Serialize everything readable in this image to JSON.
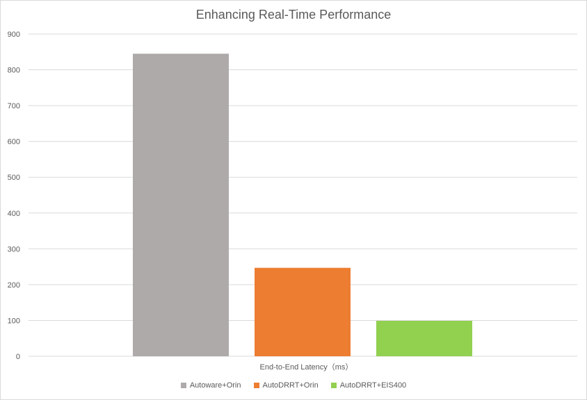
{
  "chart_data": {
    "type": "bar",
    "title": "Enhancing Real-Time Performance",
    "categories": [
      "End-to-End Latency（ms）"
    ],
    "xlabel": "End-to-End Latency（ms）",
    "ylabel": "",
    "ylim": [
      0,
      900
    ],
    "yticks": [
      0,
      100,
      200,
      300,
      400,
      500,
      600,
      700,
      800,
      900
    ],
    "grid": true,
    "legend_position": "bottom",
    "series": [
      {
        "name": "Autoware+Orin",
        "values": [
          845
        ],
        "color": "#aeaaaa"
      },
      {
        "name": "AutoDRRT+Orin",
        "values": [
          247
        ],
        "color": "#ed7d31"
      },
      {
        "name": "AutoDRRT+EIS400",
        "values": [
          99
        ],
        "color": "#92d050"
      }
    ]
  }
}
